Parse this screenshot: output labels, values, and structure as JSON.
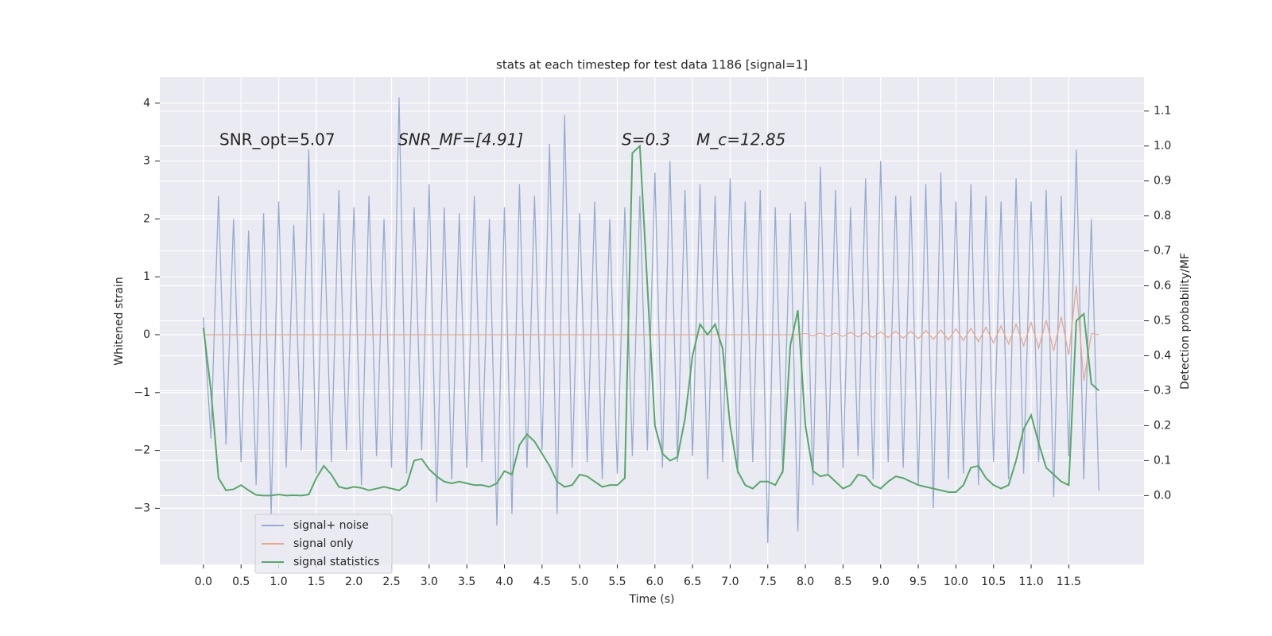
{
  "chart_data": {
    "type": "line",
    "title": "stats at each timestep for test data 1186 [signal=1]",
    "xlabel": "Time (s)",
    "ylabel": "Whitened strain",
    "y2label": "Detection probability/MF",
    "annotations": [
      "SNR_opt=5.07",
      "SNR_MF=[4.91]",
      "S=0.3",
      "M_c=12.85"
    ],
    "grid": true,
    "legend": "lower left",
    "xlim": [
      -0.58,
      12.5
    ],
    "ylim": [
      -3.97,
      4.45
    ],
    "y2lim": [
      -0.197,
      1.197
    ],
    "xticks": [
      {
        "value": 0,
        "label": "0.0"
      },
      0.5,
      {
        "value": 1,
        "label": "1.0"
      },
      1.5,
      {
        "value": 2,
        "label": "2.0"
      },
      2.5,
      {
        "value": 3,
        "label": "3.0"
      },
      3.5,
      {
        "value": 4,
        "label": "4.0"
      },
      4.5,
      {
        "value": 5,
        "label": "5.0"
      },
      5.5,
      {
        "value": 6,
        "label": "6.0"
      },
      6.5,
      {
        "value": 7,
        "label": "7.0"
      },
      7.5,
      {
        "value": 8,
        "label": "8.0"
      },
      8.5,
      {
        "value": 9,
        "label": "9.0"
      },
      9.5,
      {
        "value": 10,
        "label": "10.0"
      },
      10.5,
      {
        "value": 11,
        "label": "11.0"
      },
      11.5
    ],
    "yticks": [
      {
        "value": -3,
        "label": "−3"
      },
      {
        "value": -2,
        "label": "−2"
      },
      {
        "value": -1,
        "label": "−1"
      },
      0,
      1,
      2,
      3,
      4
    ],
    "y2ticks": [
      {
        "value": 0,
        "label": "0.0"
      },
      0.1,
      0.2,
      0.3,
      0.4,
      0.5,
      0.6,
      0.7,
      0.8,
      0.9,
      {
        "value": 1,
        "label": "1.0"
      },
      1.1
    ],
    "x": [
      0,
      0.1,
      0.2,
      0.3,
      0.4,
      0.5,
      0.6,
      0.7,
      0.8,
      0.9,
      1,
      1.1,
      1.2,
      1.3,
      1.4,
      1.5,
      1.6,
      1.7,
      1.8,
      1.9,
      2,
      2.1,
      2.2,
      2.3,
      2.4,
      2.5,
      2.6,
      2.7,
      2.8,
      2.9,
      3,
      3.1,
      3.2,
      3.3,
      3.4,
      3.5,
      3.6,
      3.7,
      3.8,
      3.9,
      4,
      4.1,
      4.2,
      4.3,
      4.4,
      4.5,
      4.6,
      4.7,
      4.8,
      4.9,
      5,
      5.1,
      5.2,
      5.3,
      5.4,
      5.5,
      5.6,
      5.7,
      5.8,
      5.9,
      6,
      6.1,
      6.2,
      6.3,
      6.4,
      6.5,
      6.6,
      6.7,
      6.8,
      6.9,
      7,
      7.1,
      7.2,
      7.3,
      7.4,
      7.5,
      7.6,
      7.7,
      7.8,
      7.9,
      8,
      8.1,
      8.2,
      8.3,
      8.4,
      8.5,
      8.6,
      8.7,
      8.8,
      8.9,
      9,
      9.1,
      9.2,
      9.3,
      9.4,
      9.5,
      9.6,
      9.7,
      9.8,
      9.9,
      10,
      10.1,
      10.2,
      10.3,
      10.4,
      10.5,
      10.6,
      10.7,
      10.8,
      10.9,
      11,
      11.1,
      11.2,
      11.3,
      11.4,
      11.5,
      11.6,
      11.7,
      11.8,
      11.9
    ],
    "series": [
      {
        "name": "signal+ noise",
        "color": "#98aad0",
        "values": [
          0.3,
          -1.8,
          2.4,
          -1.9,
          2.0,
          -2.2,
          1.8,
          -2.6,
          2.1,
          -3.1,
          2.3,
          -2.3,
          1.9,
          -2.0,
          3.2,
          -2.4,
          2.1,
          -2.2,
          2.5,
          -2.0,
          2.2,
          -2.6,
          2.4,
          -2.1,
          2.0,
          -2.3,
          4.1,
          -2.4,
          2.2,
          -2.0,
          2.6,
          -2.9,
          2.2,
          -2.5,
          2.1,
          -2.3,
          2.4,
          -2.2,
          2.0,
          -3.3,
          2.2,
          -3.1,
          2.6,
          -2.3,
          2.4,
          -2.0,
          3.3,
          -3.1,
          3.8,
          -2.3,
          2.1,
          -2.2,
          2.3,
          -2.5,
          2.0,
          -2.4,
          2.2,
          -2.1,
          2.4,
          -2.0,
          2.8,
          -2.3,
          3.0,
          -2.2,
          2.5,
          -2.1,
          2.6,
          -2.5,
          2.4,
          -2.2,
          2.7,
          -2.4,
          2.3,
          -2.2,
          2.5,
          -3.6,
          2.2,
          -2.4,
          2.1,
          -3.4,
          2.3,
          -2.6,
          2.9,
          -2.4,
          2.5,
          -2.3,
          2.2,
          -2.1,
          2.7,
          -2.5,
          3.0,
          -2.2,
          2.4,
          -2.3,
          2.4,
          -2.6,
          2.6,
          -3.0,
          2.8,
          -2.5,
          2.3,
          -2.4,
          2.6,
          -2.6,
          2.4,
          -2.2,
          2.3,
          -2.5,
          2.7,
          -2.4,
          2.3,
          -2.2,
          2.5,
          -2.8,
          2.4,
          -2.1,
          3.2,
          -2.5,
          2.0,
          -2.7
        ]
      },
      {
        "name": "signal only",
        "color": "#e5a98d",
        "values": [
          0,
          0,
          0,
          0,
          0,
          0,
          0,
          0,
          0,
          0,
          0,
          0,
          0,
          0,
          0,
          0,
          0,
          0,
          0,
          0,
          0,
          0,
          0,
          0,
          0,
          0,
          0,
          0,
          0,
          0,
          0,
          0,
          0,
          0,
          0,
          0,
          0,
          0,
          0,
          0,
          0,
          0,
          0,
          0,
          0,
          0,
          0,
          0,
          0,
          0,
          0,
          0,
          0,
          0,
          0,
          0,
          0,
          0,
          0,
          0,
          0,
          0,
          0,
          0,
          0,
          0,
          0,
          0,
          0,
          0,
          0,
          0,
          0,
          0,
          0,
          0,
          0,
          0,
          0,
          0,
          0.02,
          -0.02,
          0.03,
          -0.03,
          0.03,
          -0.03,
          0.04,
          -0.04,
          0.04,
          -0.05,
          0.05,
          -0.05,
          0.06,
          -0.06,
          0.06,
          -0.07,
          0.07,
          -0.08,
          0.08,
          -0.09,
          0.1,
          -0.1,
          0.11,
          -0.12,
          0.13,
          -0.14,
          0.15,
          -0.16,
          0.18,
          -0.19,
          0.21,
          -0.23,
          0.25,
          -0.28,
          0.31,
          -0.35,
          0.85,
          -0.8,
          0.02,
          0.0
        ]
      },
      {
        "name": "signal statistics",
        "color": "#55a868",
        "axis": "y2",
        "values": [
          0.48,
          0.3,
          0.05,
          0.015,
          0.018,
          0.03,
          0.015,
          0.002,
          0.0,
          0.0,
          0.003,
          0.0,
          0.001,
          0.0,
          0.003,
          0.05,
          0.085,
          0.06,
          0.025,
          0.02,
          0.025,
          0.022,
          0.015,
          0.02,
          0.025,
          0.02,
          0.015,
          0.03,
          0.1,
          0.105,
          0.075,
          0.055,
          0.04,
          0.035,
          0.04,
          0.035,
          0.03,
          0.03,
          0.025,
          0.035,
          0.07,
          0.06,
          0.145,
          0.175,
          0.155,
          0.12,
          0.085,
          0.04,
          0.025,
          0.03,
          0.06,
          0.055,
          0.04,
          0.025,
          0.03,
          0.03,
          0.05,
          0.98,
          1.0,
          0.6,
          0.2,
          0.12,
          0.1,
          0.11,
          0.22,
          0.4,
          0.49,
          0.46,
          0.49,
          0.42,
          0.2,
          0.07,
          0.03,
          0.02,
          0.04,
          0.04,
          0.03,
          0.07,
          0.43,
          0.53,
          0.2,
          0.07,
          0.055,
          0.06,
          0.04,
          0.02,
          0.03,
          0.06,
          0.055,
          0.03,
          0.02,
          0.04,
          0.055,
          0.05,
          0.04,
          0.03,
          0.025,
          0.02,
          0.015,
          0.01,
          0.01,
          0.03,
          0.08,
          0.085,
          0.05,
          0.03,
          0.02,
          0.03,
          0.1,
          0.19,
          0.23,
          0.15,
          0.08,
          0.06,
          0.04,
          0.03,
          0.5,
          0.52,
          0.32,
          0.3
        ]
      }
    ]
  }
}
